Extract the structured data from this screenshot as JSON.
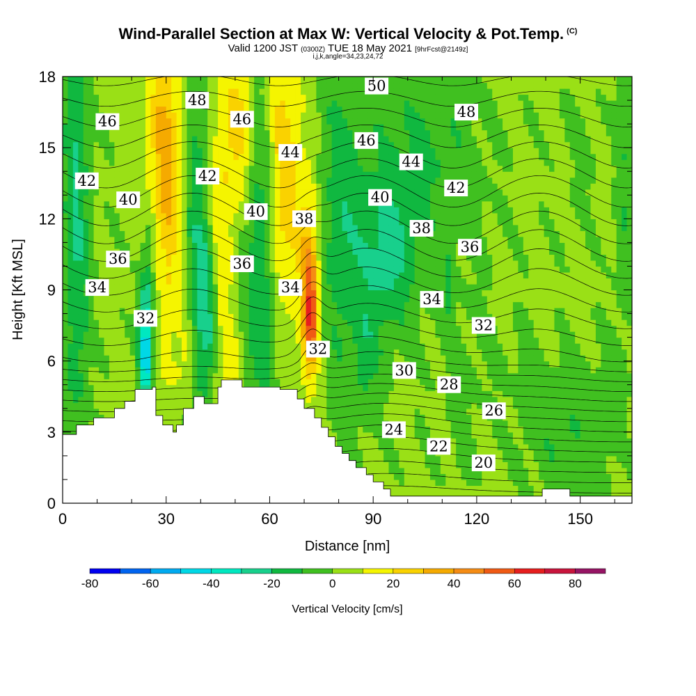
{
  "header": {
    "title": "Wind-Parallel Section at Max W: Vertical Velocity & Pot.Temp.",
    "copyright": "(C)",
    "valid_prefix": "Valid 1200 JST",
    "valid_utc": "(0300Z)",
    "valid_date": "TUE 18 May 2021",
    "forecast": "[9hrFcst@2149z]",
    "indices": "i,j,k,angle=34,23,24,72"
  },
  "chart_data": {
    "type": "heatmap",
    "xlabel": "Distance [nm]",
    "ylabel": "Height [Kft MSL]",
    "xlim": [
      0,
      165
    ],
    "ylim": [
      0,
      18
    ],
    "x_ticks": [
      0,
      30,
      60,
      90,
      120,
      150
    ],
    "y_ticks": [
      0,
      3,
      6,
      9,
      12,
      15,
      18
    ],
    "colorbar": {
      "label": "Vertical Velocity [cm/s]",
      "tick_labels": [
        "-80",
        "-60",
        "-40",
        "-20",
        "0",
        "20",
        "40",
        "60",
        "80"
      ],
      "levels": [
        -80,
        -70,
        -60,
        -50,
        -40,
        -30,
        -20,
        -10,
        0,
        10,
        20,
        30,
        40,
        50,
        60,
        70,
        80,
        90
      ],
      "colors": [
        "#0000f0",
        "#0064f0",
        "#00aaf0",
        "#00d8e6",
        "#00e8c0",
        "#18d08c",
        "#10b840",
        "#40c020",
        "#9ae016",
        "#f5f500",
        "#fad200",
        "#f5aa00",
        "#f58c14",
        "#f05a14",
        "#e61e1e",
        "#c8143c",
        "#961464"
      ]
    },
    "theta_contour_labels": [
      {
        "text": "48",
        "x": 39,
        "y": 17.0
      },
      {
        "text": "50",
        "x": 91,
        "y": 17.6
      },
      {
        "text": "46",
        "x": 13,
        "y": 16.1
      },
      {
        "text": "46",
        "x": 52,
        "y": 16.2
      },
      {
        "text": "48",
        "x": 117,
        "y": 16.5
      },
      {
        "text": "44",
        "x": 66,
        "y": 14.8
      },
      {
        "text": "46",
        "x": 88,
        "y": 15.3
      },
      {
        "text": "44",
        "x": 101,
        "y": 14.4
      },
      {
        "text": "42",
        "x": 7,
        "y": 13.6
      },
      {
        "text": "42",
        "x": 42,
        "y": 13.8
      },
      {
        "text": "42",
        "x": 114,
        "y": 13.3
      },
      {
        "text": "40",
        "x": 19,
        "y": 12.8
      },
      {
        "text": "40",
        "x": 92,
        "y": 12.9
      },
      {
        "text": "40",
        "x": 56,
        "y": 12.3
      },
      {
        "text": "38",
        "x": 70,
        "y": 12.0
      },
      {
        "text": "38",
        "x": 104,
        "y": 11.6
      },
      {
        "text": "36",
        "x": 16,
        "y": 10.3
      },
      {
        "text": "36",
        "x": 52,
        "y": 10.1
      },
      {
        "text": "36",
        "x": 118,
        "y": 10.8
      },
      {
        "text": "34",
        "x": 10,
        "y": 9.1
      },
      {
        "text": "34",
        "x": 66,
        "y": 9.1
      },
      {
        "text": "34",
        "x": 107,
        "y": 8.6
      },
      {
        "text": "32",
        "x": 24,
        "y": 7.8
      },
      {
        "text": "32",
        "x": 74,
        "y": 6.5
      },
      {
        "text": "32",
        "x": 122,
        "y": 7.5
      },
      {
        "text": "30",
        "x": 99,
        "y": 5.6
      },
      {
        "text": "28",
        "x": 112,
        "y": 5.0
      },
      {
        "text": "26",
        "x": 125,
        "y": 3.9
      },
      {
        "text": "24",
        "x": 96,
        "y": 3.1
      },
      {
        "text": "22",
        "x": 109,
        "y": 2.4
      },
      {
        "text": "20",
        "x": 122,
        "y": 1.7
      }
    ]
  }
}
